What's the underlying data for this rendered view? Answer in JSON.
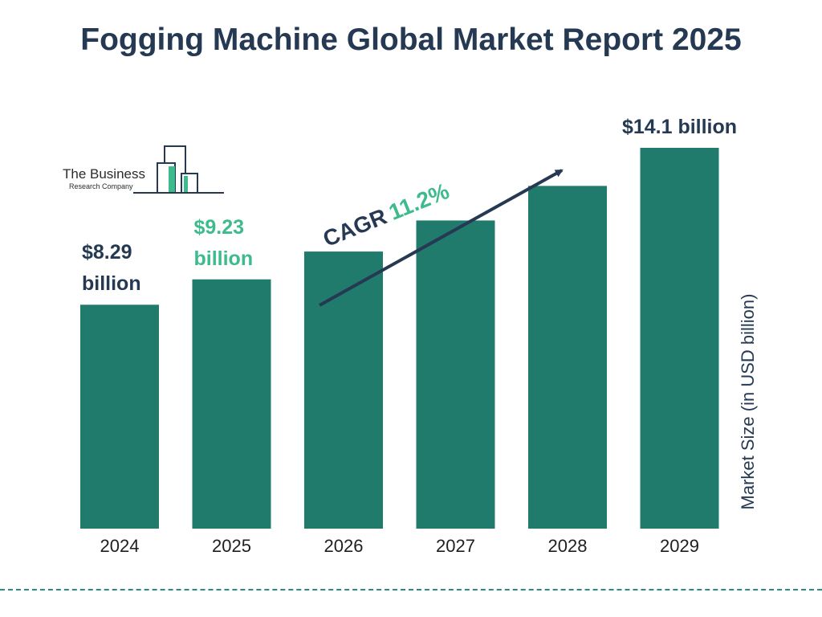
{
  "title": "Fogging Machine Global Market Report 2025",
  "logo": {
    "line1": "The Business",
    "line2": "Research Company"
  },
  "cagr": {
    "label": "CAGR",
    "value": "11.2%"
  },
  "colors": {
    "bar": "#207b6d",
    "title": "#253a52",
    "highlight": "#3dbb8c",
    "footer": "#2a8c80"
  },
  "chart_data": {
    "type": "bar",
    "title": "Fogging Machine Global Market Report 2025",
    "categories": [
      "2024",
      "2025",
      "2026",
      "2027",
      "2028",
      "2029"
    ],
    "values": [
      8.29,
      9.23,
      10.26,
      11.41,
      12.69,
      14.1
    ],
    "ylabel": "Market Size (in USD billion)",
    "xlabel": "",
    "ylim": [
      0,
      15
    ],
    "grid": false,
    "data_labels": [
      {
        "category": "2024",
        "line1": "$8.29",
        "line2": "billion"
      },
      {
        "category": "2025",
        "line1": "$9.23",
        "line2": "billion"
      },
      {
        "category": "2029",
        "line1": "$14.1 billion",
        "line2": ""
      }
    ]
  }
}
